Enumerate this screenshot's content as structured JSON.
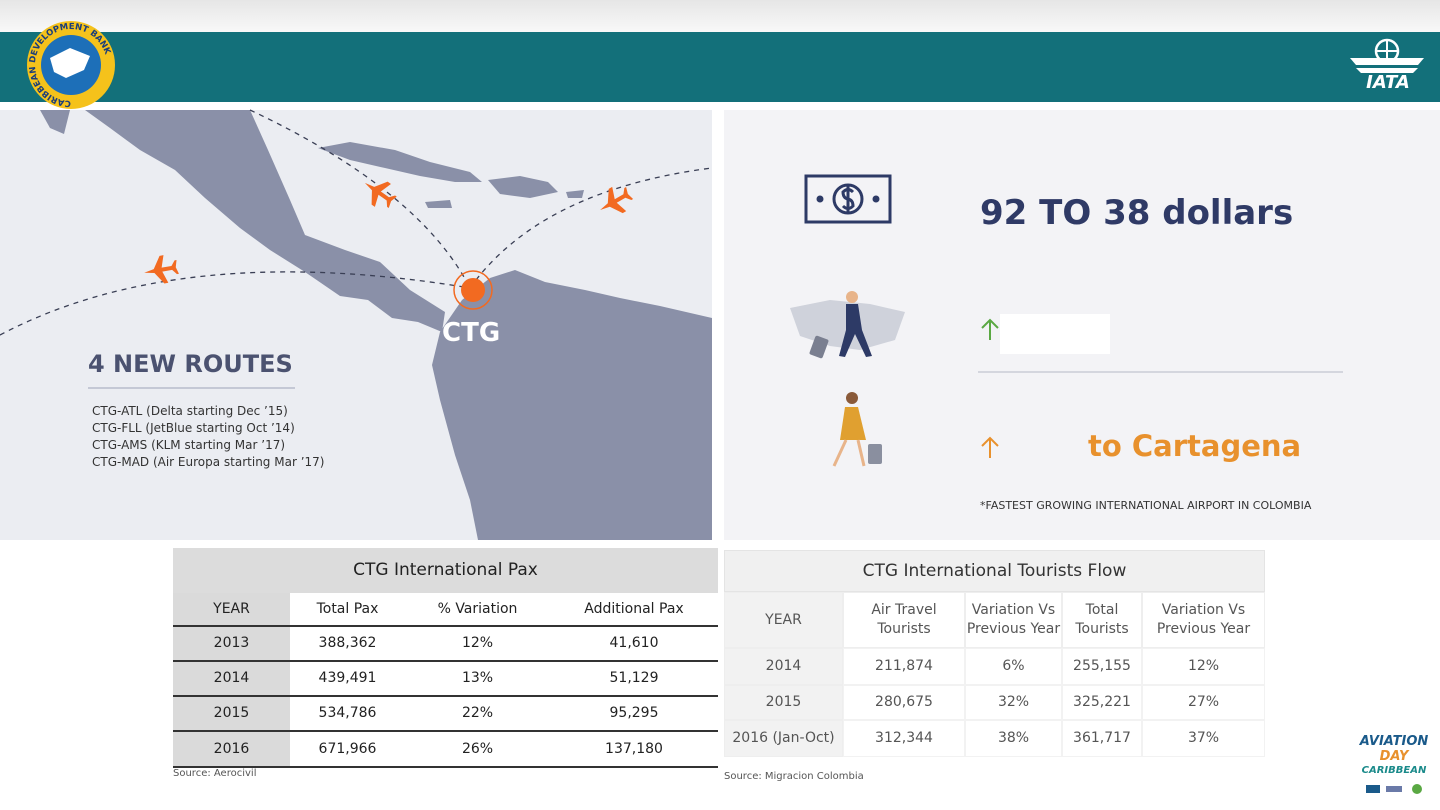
{
  "header": {
    "left_logo": "CARIBBEAN DEVELOPMENT BANK",
    "right_logo": "IATA"
  },
  "map": {
    "airport": "CTG",
    "title": "4 NEW ROUTES",
    "routes": [
      "CTG-ATL (Delta starting Dec ’15)",
      "CTG-FLL (JetBlue starting Oct ’14)",
      "CTG-AMS (KLM starting Mar ’17)",
      "CTG-MAD (Air Europa starting Mar ’17)"
    ]
  },
  "highlights": {
    "fare": "92 TO 38 dollars",
    "tourists": "to Cartagena",
    "footnote": "*FASTEST GROWING INTERNATIONAL AIRPORT IN COLOMBIA"
  },
  "pax_table": {
    "title": "CTG International Pax",
    "columns": [
      "YEAR",
      "Total Pax",
      "% Variation",
      "Additional Pax"
    ],
    "rows": [
      [
        "2013",
        "388,362",
        "12%",
        "41,610"
      ],
      [
        "2014",
        "439,491",
        "13%",
        "51,129"
      ],
      [
        "2015",
        "534,786",
        "22%",
        "95,295"
      ],
      [
        "2016",
        "671,966",
        "26%",
        "137,180"
      ]
    ],
    "source": "Source: Aerocivil"
  },
  "tourists_table": {
    "title": "CTG International Tourists Flow",
    "columns": [
      "YEAR",
      "Air Travel Tourists",
      "Variation Vs Previous Year",
      "Total Tourists",
      "Variation Vs Previous Year"
    ],
    "rows": [
      [
        "2014",
        "211,874",
        "6%",
        "255,155",
        "12%"
      ],
      [
        "2015",
        "280,675",
        "32%",
        "325,221",
        "27%"
      ],
      [
        "2016 (Jan-Oct)",
        "312,344",
        "38%",
        "361,717",
        "37%"
      ]
    ],
    "source": "Source: Migracion Colombia"
  },
  "footer_logo": [
    "AVIATION",
    "DAY",
    "CARIBBEAN"
  ]
}
